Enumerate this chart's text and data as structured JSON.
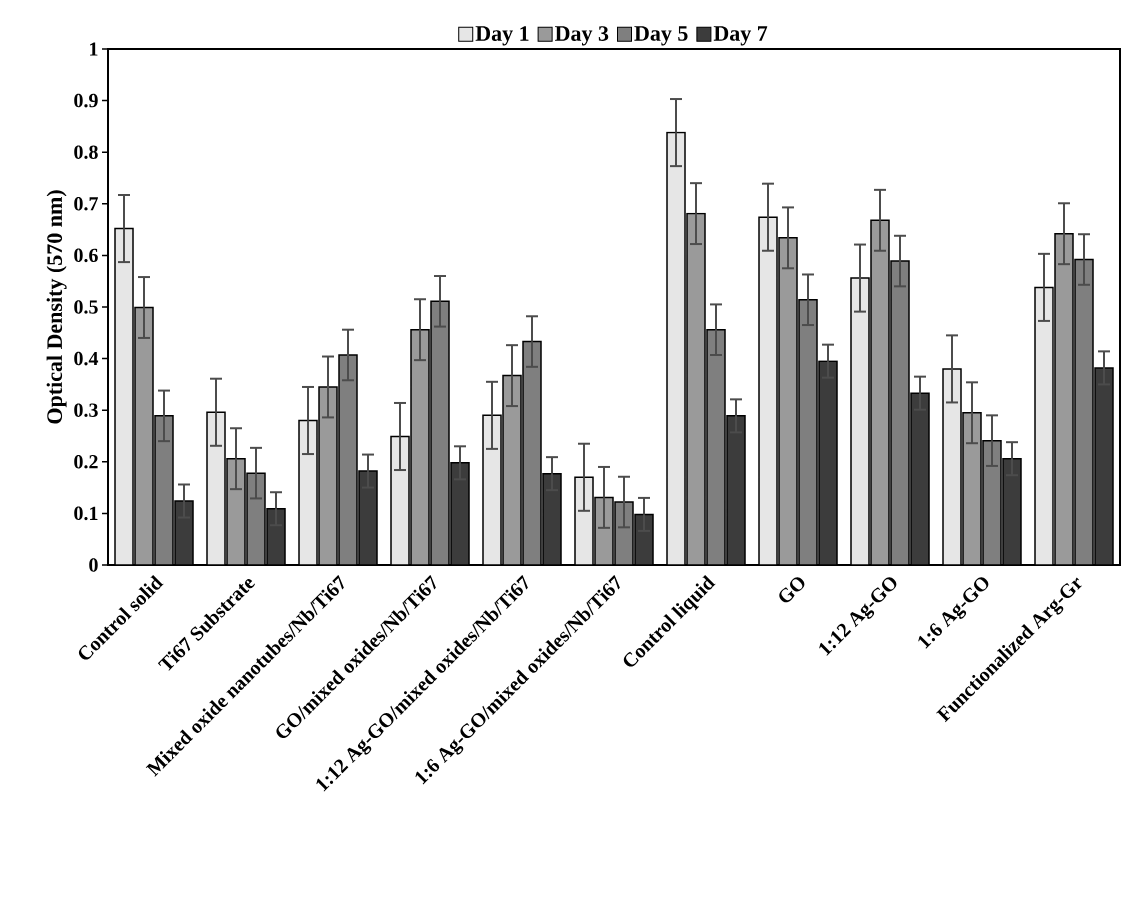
{
  "chart_data": {
    "type": "bar",
    "ylabel": "Optical Density (570 nm)",
    "categories": [
      "Control solid",
      "Ti67 Substrate",
      "Mixed oxide nanotubes/Nb/Ti67",
      "GO/mixed oxides/Nb/Ti67",
      "1:12 Ag-GO/mixed oxides/Nb/Ti67",
      "1:6 Ag-GO/mixed oxides/Nb/Ti67",
      "Control liquid",
      "GO",
      "1:12 Ag-GO",
      "1:6 Ag-GO",
      "Functionalized Arg-Gr"
    ],
    "series": [
      {
        "name": "Day 1",
        "color": "#e6e6e6",
        "values": [
          0.652,
          0.296,
          0.28,
          0.249,
          0.29,
          0.17,
          0.838,
          0.674,
          0.556,
          0.38,
          0.538
        ],
        "errors": [
          0.065,
          0.065,
          0.065,
          0.065,
          0.065,
          0.065,
          0.065,
          0.065,
          0.065,
          0.065,
          0.065
        ]
      },
      {
        "name": "Day 3",
        "color": "#9a9a9a",
        "values": [
          0.499,
          0.206,
          0.345,
          0.456,
          0.367,
          0.131,
          0.681,
          0.634,
          0.668,
          0.295,
          0.642
        ],
        "errors": [
          0.059,
          0.059,
          0.059,
          0.059,
          0.059,
          0.059,
          0.059,
          0.059,
          0.059,
          0.059,
          0.059
        ]
      },
      {
        "name": "Day 5",
        "color": "#7f7f7f",
        "values": [
          0.289,
          0.178,
          0.407,
          0.511,
          0.433,
          0.122,
          0.456,
          0.514,
          0.589,
          0.241,
          0.592
        ],
        "errors": [
          0.049,
          0.049,
          0.049,
          0.049,
          0.049,
          0.049,
          0.049,
          0.049,
          0.049,
          0.049,
          0.049
        ]
      },
      {
        "name": "Day 7",
        "color": "#3c3c3c",
        "values": [
          0.124,
          0.109,
          0.182,
          0.198,
          0.177,
          0.098,
          0.289,
          0.395,
          0.333,
          0.206,
          0.382
        ],
        "errors": [
          0.032,
          0.032,
          0.032,
          0.032,
          0.032,
          0.032,
          0.032,
          0.032,
          0.032,
          0.032,
          0.032
        ]
      }
    ],
    "ylim": [
      0,
      1
    ],
    "yticks": [
      0,
      0.1,
      0.2,
      0.3,
      0.4,
      0.5,
      0.6,
      0.7,
      0.8,
      0.9,
      1
    ],
    "grid": false,
    "legend": "top"
  }
}
